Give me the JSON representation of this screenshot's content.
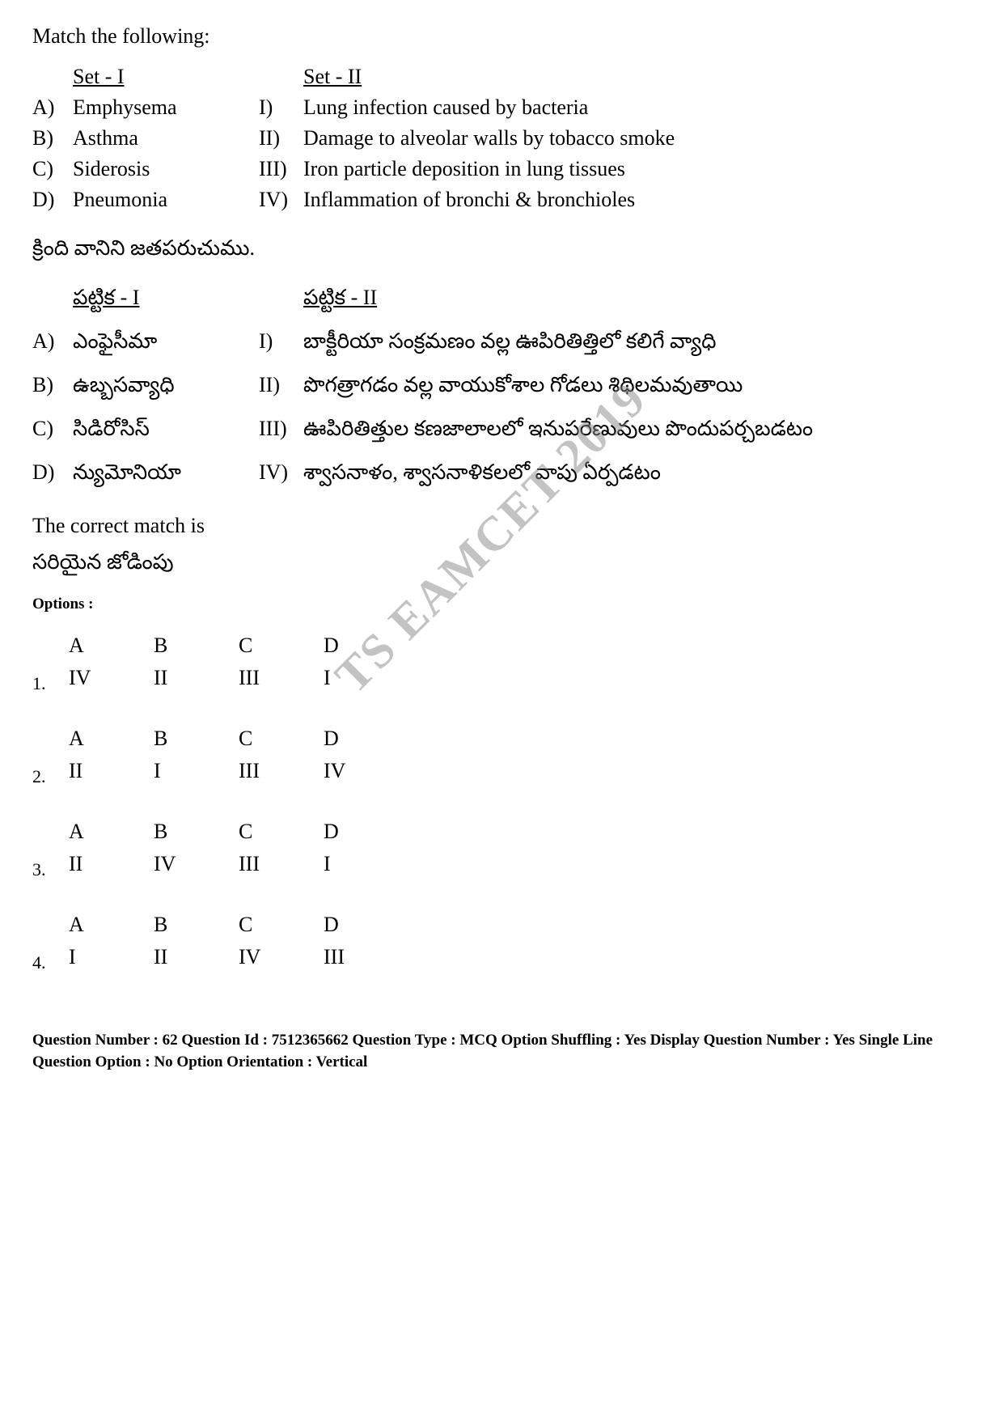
{
  "question_title": "Match the following:",
  "english": {
    "set1_header": "Set - I",
    "set2_header": "Set - II",
    "rows": [
      {
        "label1": "A)",
        "item1": "Emphysema",
        "label2": "I)",
        "item2": "Lung infection caused by bacteria"
      },
      {
        "label1": "B)",
        "item1": "Asthma",
        "label2": "II)",
        "item2": "Damage to alveolar walls by tobacco smoke"
      },
      {
        "label1": "C)",
        "item1": "Siderosis",
        "label2": "III)",
        "item2": "Iron particle deposition in lung tissues"
      },
      {
        "label1": "D)",
        "item1": "Pneumonia",
        "label2": "IV)",
        "item2": "Inflammation of bronchi & bronchioles"
      }
    ]
  },
  "telugu": {
    "header": "క్రింది వానిని జతపరుచుము.",
    "set1_header": "పట్టిక - I",
    "set2_header": "పట్టిక - II",
    "rows": [
      {
        "label1": "A)",
        "item1": "ఎంఫైసీమా",
        "label2": "I)",
        "item2": "బాక్టీరియా సంక్రమణం వల్ల ఊపిరితిత్తిలో కలిగే వ్యాధి"
      },
      {
        "label1": "B)",
        "item1": "ఉబ్బసవ్యాధి",
        "label2": "II)",
        "item2": "పొగత్రాగడం వల్ల వాయుకోశాల గోడలు శిథిలమవుతాయి"
      },
      {
        "label1": "C)",
        "item1": "సిడిరోసిస్",
        "label2": "III)",
        "item2": "ఊపిరితిత్తుల కణజాలాలలో ఇనుపరేణువులు పొందుపర్చబడటం"
      },
      {
        "label1": "D)",
        "item1": "న్యుమోనియా",
        "label2": "IV)",
        "item2": "శ్వాసనాళం, శ్వాసనాళికలలో వాపు ఏర్పడటం"
      }
    ]
  },
  "correct_match_en": "The correct match is",
  "correct_match_te": "సరియైన జోడింపు",
  "options_label": "Options :",
  "option_headers": [
    "A",
    "B",
    "C",
    "D"
  ],
  "options": [
    {
      "num": "1.",
      "values": [
        "IV",
        "II",
        "III",
        "I"
      ]
    },
    {
      "num": "2.",
      "values": [
        "II",
        "I",
        "III",
        "IV"
      ]
    },
    {
      "num": "3.",
      "values": [
        "II",
        "IV",
        "III",
        "I"
      ]
    },
    {
      "num": "4.",
      "values": [
        "I",
        "II",
        "IV",
        "III"
      ]
    }
  ],
  "footer": "Question Number : 62  Question Id : 7512365662  Question Type : MCQ  Option Shuffling : Yes  Display Question Number : Yes Single Line Question Option : No  Option Orientation : Vertical",
  "watermark": "TS EAMCET 2019"
}
